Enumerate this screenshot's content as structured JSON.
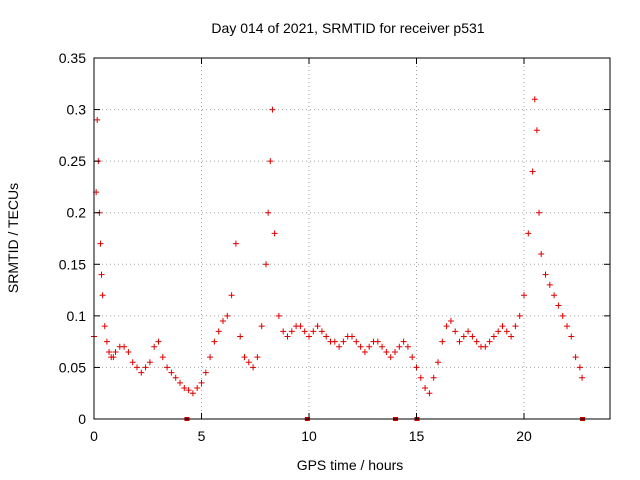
{
  "chart_data": {
    "type": "scatter",
    "title": "Day 014 of 2021, SRMTID for receiver p531",
    "xlabel": "GPS time / hours",
    "ylabel": "SRMTID / TECUs",
    "xlim": [
      0,
      24
    ],
    "ylim": [
      0,
      0.35
    ],
    "xticks": [
      0,
      5,
      10,
      15,
      20
    ],
    "xtick_labels": [
      "0",
      "5",
      "10",
      "15",
      "20"
    ],
    "yticks": [
      0,
      0.05,
      0.1,
      0.15,
      0.2,
      0.25,
      0.3,
      0.35
    ],
    "ytick_labels": [
      "0",
      "0.05",
      "0.1",
      "0.15",
      "0.2",
      "0.25",
      "0.3",
      "0.35"
    ],
    "grid": true,
    "marker": "+",
    "colors": {
      "series": "#e00000",
      "gap": "#d00000"
    },
    "series": [
      {
        "name": "SRMTID",
        "x": [
          0.0,
          0.1,
          0.15,
          0.2,
          0.25,
          0.3,
          0.35,
          0.4,
          0.5,
          0.6,
          0.7,
          0.8,
          0.9,
          1.0,
          1.2,
          1.4,
          1.6,
          1.8,
          2.0,
          2.2,
          2.4,
          2.6,
          2.8,
          3.0,
          3.2,
          3.4,
          3.6,
          3.8,
          4.0,
          4.2,
          4.4,
          4.6,
          4.8,
          5.0,
          5.2,
          5.4,
          5.6,
          5.8,
          6.0,
          6.2,
          6.4,
          6.6,
          6.8,
          7.0,
          7.2,
          7.4,
          7.6,
          7.8,
          8.0,
          8.1,
          8.2,
          8.3,
          8.4,
          8.6,
          8.8,
          9.0,
          9.2,
          9.4,
          9.6,
          9.8,
          10.0,
          10.2,
          10.4,
          10.6,
          10.8,
          11.0,
          11.2,
          11.4,
          11.6,
          11.8,
          12.0,
          12.2,
          12.4,
          12.6,
          12.8,
          13.0,
          13.2,
          13.4,
          13.6,
          13.8,
          14.0,
          14.2,
          14.4,
          14.6,
          14.8,
          15.0,
          15.2,
          15.4,
          15.6,
          15.8,
          16.0,
          16.2,
          16.4,
          16.6,
          16.8,
          17.0,
          17.2,
          17.4,
          17.6,
          17.8,
          18.0,
          18.2,
          18.4,
          18.6,
          18.8,
          19.0,
          19.2,
          19.4,
          19.6,
          19.8,
          20.0,
          20.2,
          20.4,
          20.5,
          20.6,
          20.7,
          20.8,
          21.0,
          21.2,
          21.4,
          21.6,
          21.8,
          22.0,
          22.2,
          22.4,
          22.6,
          22.7
        ],
        "y": [
          0.08,
          0.22,
          0.29,
          0.25,
          0.2,
          0.17,
          0.14,
          0.12,
          0.09,
          0.075,
          0.065,
          0.06,
          0.06,
          0.065,
          0.07,
          0.07,
          0.065,
          0.055,
          0.05,
          0.045,
          0.05,
          0.055,
          0.07,
          0.075,
          0.06,
          0.05,
          0.045,
          0.04,
          0.035,
          0.03,
          0.028,
          0.025,
          0.03,
          0.035,
          0.045,
          0.06,
          0.075,
          0.085,
          0.095,
          0.1,
          0.12,
          0.17,
          0.08,
          0.06,
          0.055,
          0.05,
          0.06,
          0.09,
          0.15,
          0.2,
          0.25,
          0.3,
          0.18,
          0.1,
          0.085,
          0.08,
          0.085,
          0.09,
          0.09,
          0.085,
          0.08,
          0.085,
          0.09,
          0.085,
          0.08,
          0.075,
          0.075,
          0.07,
          0.075,
          0.08,
          0.08,
          0.075,
          0.07,
          0.065,
          0.07,
          0.075,
          0.075,
          0.07,
          0.065,
          0.06,
          0.065,
          0.07,
          0.075,
          0.07,
          0.06,
          0.05,
          0.04,
          0.03,
          0.025,
          0.04,
          0.055,
          0.075,
          0.09,
          0.095,
          0.085,
          0.075,
          0.08,
          0.085,
          0.08,
          0.075,
          0.07,
          0.07,
          0.075,
          0.08,
          0.085,
          0.09,
          0.085,
          0.08,
          0.09,
          0.1,
          0.12,
          0.18,
          0.24,
          0.31,
          0.28,
          0.2,
          0.16,
          0.14,
          0.13,
          0.12,
          0.11,
          0.1,
          0.09,
          0.08,
          0.06,
          0.05,
          0.04
        ]
      }
    ],
    "gap_markers_x": [
      4.3,
      9.9,
      14.0,
      15.0,
      22.7
    ]
  }
}
